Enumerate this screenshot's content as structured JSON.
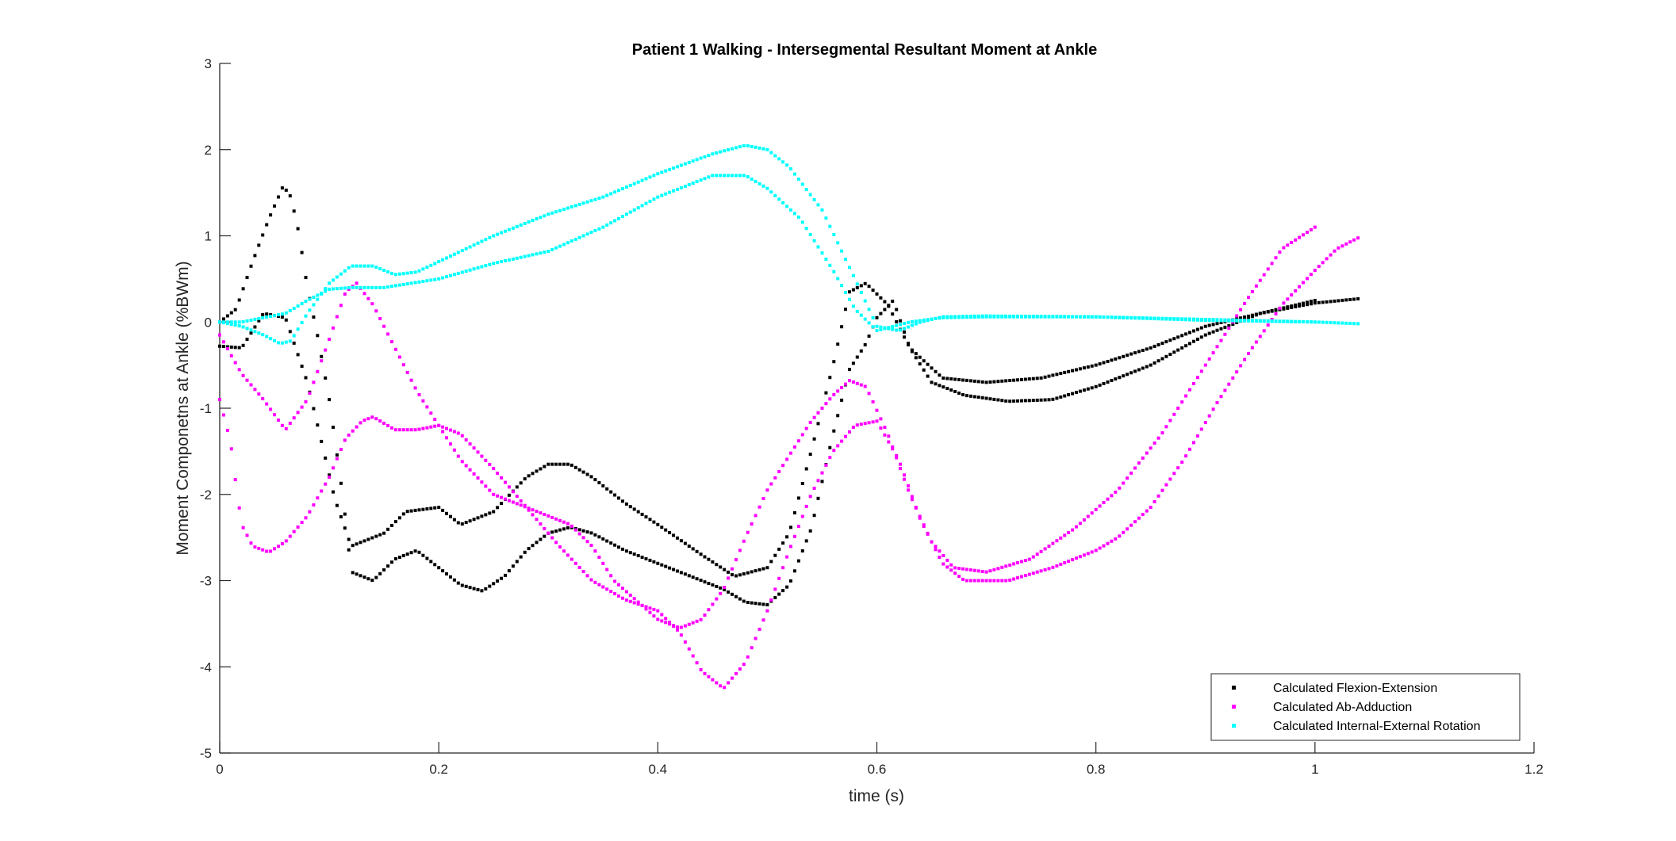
{
  "chart_data": {
    "type": "scatter",
    "title": "Patient 1 Walking - Intersegmental Resultant Moment at Ankle",
    "xlabel": "time (s)",
    "ylabel": "Moment Componetns at Ankle (%BWm)",
    "xlim": [
      0,
      1.2
    ],
    "ylim": [
      -5,
      3
    ],
    "xticks": [
      0,
      0.2,
      0.4,
      0.6,
      0.8,
      1,
      1.2
    ],
    "xtick_labels": [
      "0",
      "0.2",
      "0.4",
      "0.6",
      "0.8",
      "1",
      "1.2"
    ],
    "yticks": [
      -5,
      -4,
      -3,
      -2,
      -1,
      0,
      1,
      2,
      3
    ],
    "ytick_labels": [
      "-5",
      "-4",
      "-3",
      "-2",
      "-1",
      "0",
      "1",
      "2",
      "3"
    ],
    "grid": false,
    "legend_position": "bottom-right",
    "series": [
      {
        "name": "Calculated Flexion-Extension",
        "color": "#000000",
        "curves": [
          {
            "t_range": [
              0,
              1.0
            ],
            "points": [
              [
                0,
                -0.28
              ],
              [
                0.02,
                -0.3
              ],
              [
                0.04,
                0.1
              ],
              [
                0.06,
                0.05
              ],
              [
                0.08,
                -0.7
              ],
              [
                0.095,
                -1.5
              ],
              [
                0.105,
                -2.05
              ],
              [
                0.12,
                -2.6
              ],
              [
                0.15,
                -2.45
              ],
              [
                0.17,
                -2.2
              ],
              [
                0.2,
                -2.15
              ],
              [
                0.22,
                -2.35
              ],
              [
                0.25,
                -2.2
              ],
              [
                0.28,
                -1.8
              ],
              [
                0.3,
                -1.65
              ],
              [
                0.32,
                -1.65
              ],
              [
                0.34,
                -1.8
              ],
              [
                0.37,
                -2.1
              ],
              [
                0.4,
                -2.35
              ],
              [
                0.44,
                -2.7
              ],
              [
                0.47,
                -2.95
              ],
              [
                0.5,
                -2.85
              ],
              [
                0.52,
                -2.45
              ],
              [
                0.54,
                -1.5
              ],
              [
                0.56,
                -0.5
              ],
              [
                0.575,
                0.35
              ],
              [
                0.59,
                0.45
              ],
              [
                0.61,
                0.2
              ],
              [
                0.63,
                -0.3
              ],
              [
                0.66,
                -0.65
              ],
              [
                0.7,
                -0.7
              ],
              [
                0.75,
                -0.65
              ],
              [
                0.8,
                -0.5
              ],
              [
                0.85,
                -0.3
              ],
              [
                0.9,
                -0.05
              ],
              [
                0.95,
                0.1
              ],
              [
                1.0,
                0.25
              ]
            ]
          },
          {
            "t_range": [
              0,
              1.04
            ],
            "points": [
              [
                0,
                0
              ],
              [
                0.015,
                0.15
              ],
              [
                0.03,
                0.7
              ],
              [
                0.045,
                1.2
              ],
              [
                0.058,
                1.58
              ],
              [
                0.065,
                1.45
              ],
              [
                0.072,
                1.05
              ],
              [
                0.08,
                0.4
              ],
              [
                0.09,
                -0.2
              ],
              [
                0.1,
                -0.9
              ],
              [
                0.11,
                -1.8
              ],
              [
                0.115,
                -2.3
              ],
              [
                0.12,
                -2.9
              ],
              [
                0.14,
                -3.0
              ],
              [
                0.16,
                -2.75
              ],
              [
                0.18,
                -2.65
              ],
              [
                0.2,
                -2.85
              ],
              [
                0.22,
                -3.05
              ],
              [
                0.24,
                -3.12
              ],
              [
                0.26,
                -2.95
              ],
              [
                0.28,
                -2.65
              ],
              [
                0.3,
                -2.45
              ],
              [
                0.32,
                -2.38
              ],
              [
                0.34,
                -2.45
              ],
              [
                0.37,
                -2.65
              ],
              [
                0.4,
                -2.8
              ],
              [
                0.43,
                -2.95
              ],
              [
                0.46,
                -3.1
              ],
              [
                0.48,
                -3.25
              ],
              [
                0.5,
                -3.28
              ],
              [
                0.52,
                -3.05
              ],
              [
                0.54,
                -2.4
              ],
              [
                0.56,
                -1.3
              ],
              [
                0.575,
                -0.55
              ],
              [
                0.59,
                -0.25
              ],
              [
                0.6,
                0.05
              ],
              [
                0.615,
                0.25
              ],
              [
                0.63,
                -0.3
              ],
              [
                0.65,
                -0.7
              ],
              [
                0.68,
                -0.85
              ],
              [
                0.72,
                -0.92
              ],
              [
                0.76,
                -0.9
              ],
              [
                0.8,
                -0.75
              ],
              [
                0.85,
                -0.5
              ],
              [
                0.9,
                -0.15
              ],
              [
                0.95,
                0.1
              ],
              [
                1.0,
                0.22
              ],
              [
                1.04,
                0.27
              ]
            ]
          }
        ]
      },
      {
        "name": "Calculated Ab-Adduction",
        "color": "#ff00ff",
        "curves": [
          {
            "t_range": [
              0,
              1.0
            ],
            "points": [
              [
                0,
                -0.15
              ],
              [
                0.02,
                -0.6
              ],
              [
                0.04,
                -0.9
              ],
              [
                0.06,
                -1.25
              ],
              [
                0.08,
                -0.9
              ],
              [
                0.1,
                -0.2
              ],
              [
                0.115,
                0.35
              ],
              [
                0.125,
                0.45
              ],
              [
                0.14,
                0.2
              ],
              [
                0.16,
                -0.3
              ],
              [
                0.18,
                -0.8
              ],
              [
                0.2,
                -1.2
              ],
              [
                0.22,
                -1.6
              ],
              [
                0.25,
                -2.0
              ],
              [
                0.28,
                -2.15
              ],
              [
                0.3,
                -2.25
              ],
              [
                0.32,
                -2.35
              ],
              [
                0.34,
                -2.6
              ],
              [
                0.36,
                -3.0
              ],
              [
                0.4,
                -3.45
              ],
              [
                0.42,
                -3.55
              ],
              [
                0.44,
                -3.45
              ],
              [
                0.46,
                -3.1
              ],
              [
                0.48,
                -2.5
              ],
              [
                0.5,
                -1.95
              ],
              [
                0.52,
                -1.55
              ],
              [
                0.54,
                -1.15
              ],
              [
                0.56,
                -0.85
              ],
              [
                0.575,
                -0.68
              ],
              [
                0.59,
                -0.75
              ],
              [
                0.61,
                -1.3
              ],
              [
                0.63,
                -2.0
              ],
              [
                0.65,
                -2.55
              ],
              [
                0.67,
                -2.85
              ],
              [
                0.7,
                -2.9
              ],
              [
                0.74,
                -2.75
              ],
              [
                0.78,
                -2.4
              ],
              [
                0.82,
                -1.95
              ],
              [
                0.86,
                -1.3
              ],
              [
                0.9,
                -0.5
              ],
              [
                0.94,
                0.3
              ],
              [
                0.97,
                0.85
              ],
              [
                1.0,
                1.1
              ]
            ]
          },
          {
            "t_range": [
              0,
              1.04
            ],
            "points": [
              [
                0,
                -0.9
              ],
              [
                0.01,
                -1.4
              ],
              [
                0.015,
                -1.9
              ],
              [
                0.02,
                -2.35
              ],
              [
                0.03,
                -2.6
              ],
              [
                0.045,
                -2.67
              ],
              [
                0.06,
                -2.55
              ],
              [
                0.08,
                -2.25
              ],
              [
                0.1,
                -1.8
              ],
              [
                0.115,
                -1.35
              ],
              [
                0.13,
                -1.15
              ],
              [
                0.14,
                -1.1
              ],
              [
                0.16,
                -1.25
              ],
              [
                0.18,
                -1.25
              ],
              [
                0.2,
                -1.2
              ],
              [
                0.22,
                -1.3
              ],
              [
                0.25,
                -1.7
              ],
              [
                0.28,
                -2.15
              ],
              [
                0.31,
                -2.6
              ],
              [
                0.34,
                -3.0
              ],
              [
                0.37,
                -3.22
              ],
              [
                0.4,
                -3.35
              ],
              [
                0.42,
                -3.6
              ],
              [
                0.44,
                -4.05
              ],
              [
                0.46,
                -4.25
              ],
              [
                0.48,
                -3.95
              ],
              [
                0.5,
                -3.35
              ],
              [
                0.52,
                -2.65
              ],
              [
                0.54,
                -2.0
              ],
              [
                0.56,
                -1.5
              ],
              [
                0.58,
                -1.2
              ],
              [
                0.6,
                -1.15
              ],
              [
                0.62,
                -1.6
              ],
              [
                0.64,
                -2.3
              ],
              [
                0.66,
                -2.8
              ],
              [
                0.68,
                -3.0
              ],
              [
                0.72,
                -3.0
              ],
              [
                0.76,
                -2.85
              ],
              [
                0.8,
                -2.65
              ],
              [
                0.82,
                -2.5
              ],
              [
                0.85,
                -2.15
              ],
              [
                0.88,
                -1.6
              ],
              [
                0.91,
                -0.95
              ],
              [
                0.94,
                -0.35
              ],
              [
                0.97,
                0.2
              ],
              [
                1.0,
                0.6
              ],
              [
                1.02,
                0.85
              ],
              [
                1.04,
                0.98
              ]
            ]
          }
        ]
      },
      {
        "name": "Calculated Internal-External Rotation",
        "color": "#00ffff",
        "curves": [
          {
            "t_range": [
              0,
              1.0
            ],
            "points": [
              [
                0,
                0.0
              ],
              [
                0.02,
                0.0
              ],
              [
                0.04,
                0.05
              ],
              [
                0.06,
                0.1
              ],
              [
                0.08,
                0.25
              ],
              [
                0.1,
                0.38
              ],
              [
                0.12,
                0.4
              ],
              [
                0.15,
                0.4
              ],
              [
                0.2,
                0.5
              ],
              [
                0.25,
                0.68
              ],
              [
                0.3,
                0.82
              ],
              [
                0.35,
                1.1
              ],
              [
                0.4,
                1.45
              ],
              [
                0.45,
                1.7
              ],
              [
                0.48,
                1.7
              ],
              [
                0.5,
                1.55
              ],
              [
                0.53,
                1.2
              ],
              [
                0.56,
                0.6
              ],
              [
                0.58,
                0.15
              ],
              [
                0.6,
                -0.1
              ],
              [
                0.63,
                0.0
              ],
              [
                0.66,
                0.05
              ],
              [
                0.7,
                0.06
              ],
              [
                0.8,
                0.06
              ],
              [
                0.9,
                0.02
              ],
              [
                1.0,
                0.0
              ]
            ]
          },
          {
            "t_range": [
              0,
              1.04
            ],
            "points": [
              [
                0,
                0.0
              ],
              [
                0.02,
                -0.05
              ],
              [
                0.04,
                -0.15
              ],
              [
                0.055,
                -0.25
              ],
              [
                0.065,
                -0.22
              ],
              [
                0.08,
                0.1
              ],
              [
                0.1,
                0.45
              ],
              [
                0.12,
                0.65
              ],
              [
                0.14,
                0.65
              ],
              [
                0.16,
                0.55
              ],
              [
                0.18,
                0.58
              ],
              [
                0.2,
                0.7
              ],
              [
                0.25,
                1.0
              ],
              [
                0.3,
                1.25
              ],
              [
                0.35,
                1.45
              ],
              [
                0.4,
                1.72
              ],
              [
                0.45,
                1.95
              ],
              [
                0.48,
                2.05
              ],
              [
                0.5,
                2.0
              ],
              [
                0.52,
                1.8
              ],
              [
                0.55,
                1.3
              ],
              [
                0.58,
                0.5
              ],
              [
                0.6,
                -0.05
              ],
              [
                0.62,
                -0.1
              ],
              [
                0.64,
                0.0
              ],
              [
                0.66,
                0.06
              ],
              [
                0.7,
                0.07
              ],
              [
                0.8,
                0.06
              ],
              [
                0.9,
                0.03
              ],
              [
                1.0,
                0.0
              ],
              [
                1.04,
                -0.02
              ]
            ]
          }
        ]
      }
    ]
  }
}
